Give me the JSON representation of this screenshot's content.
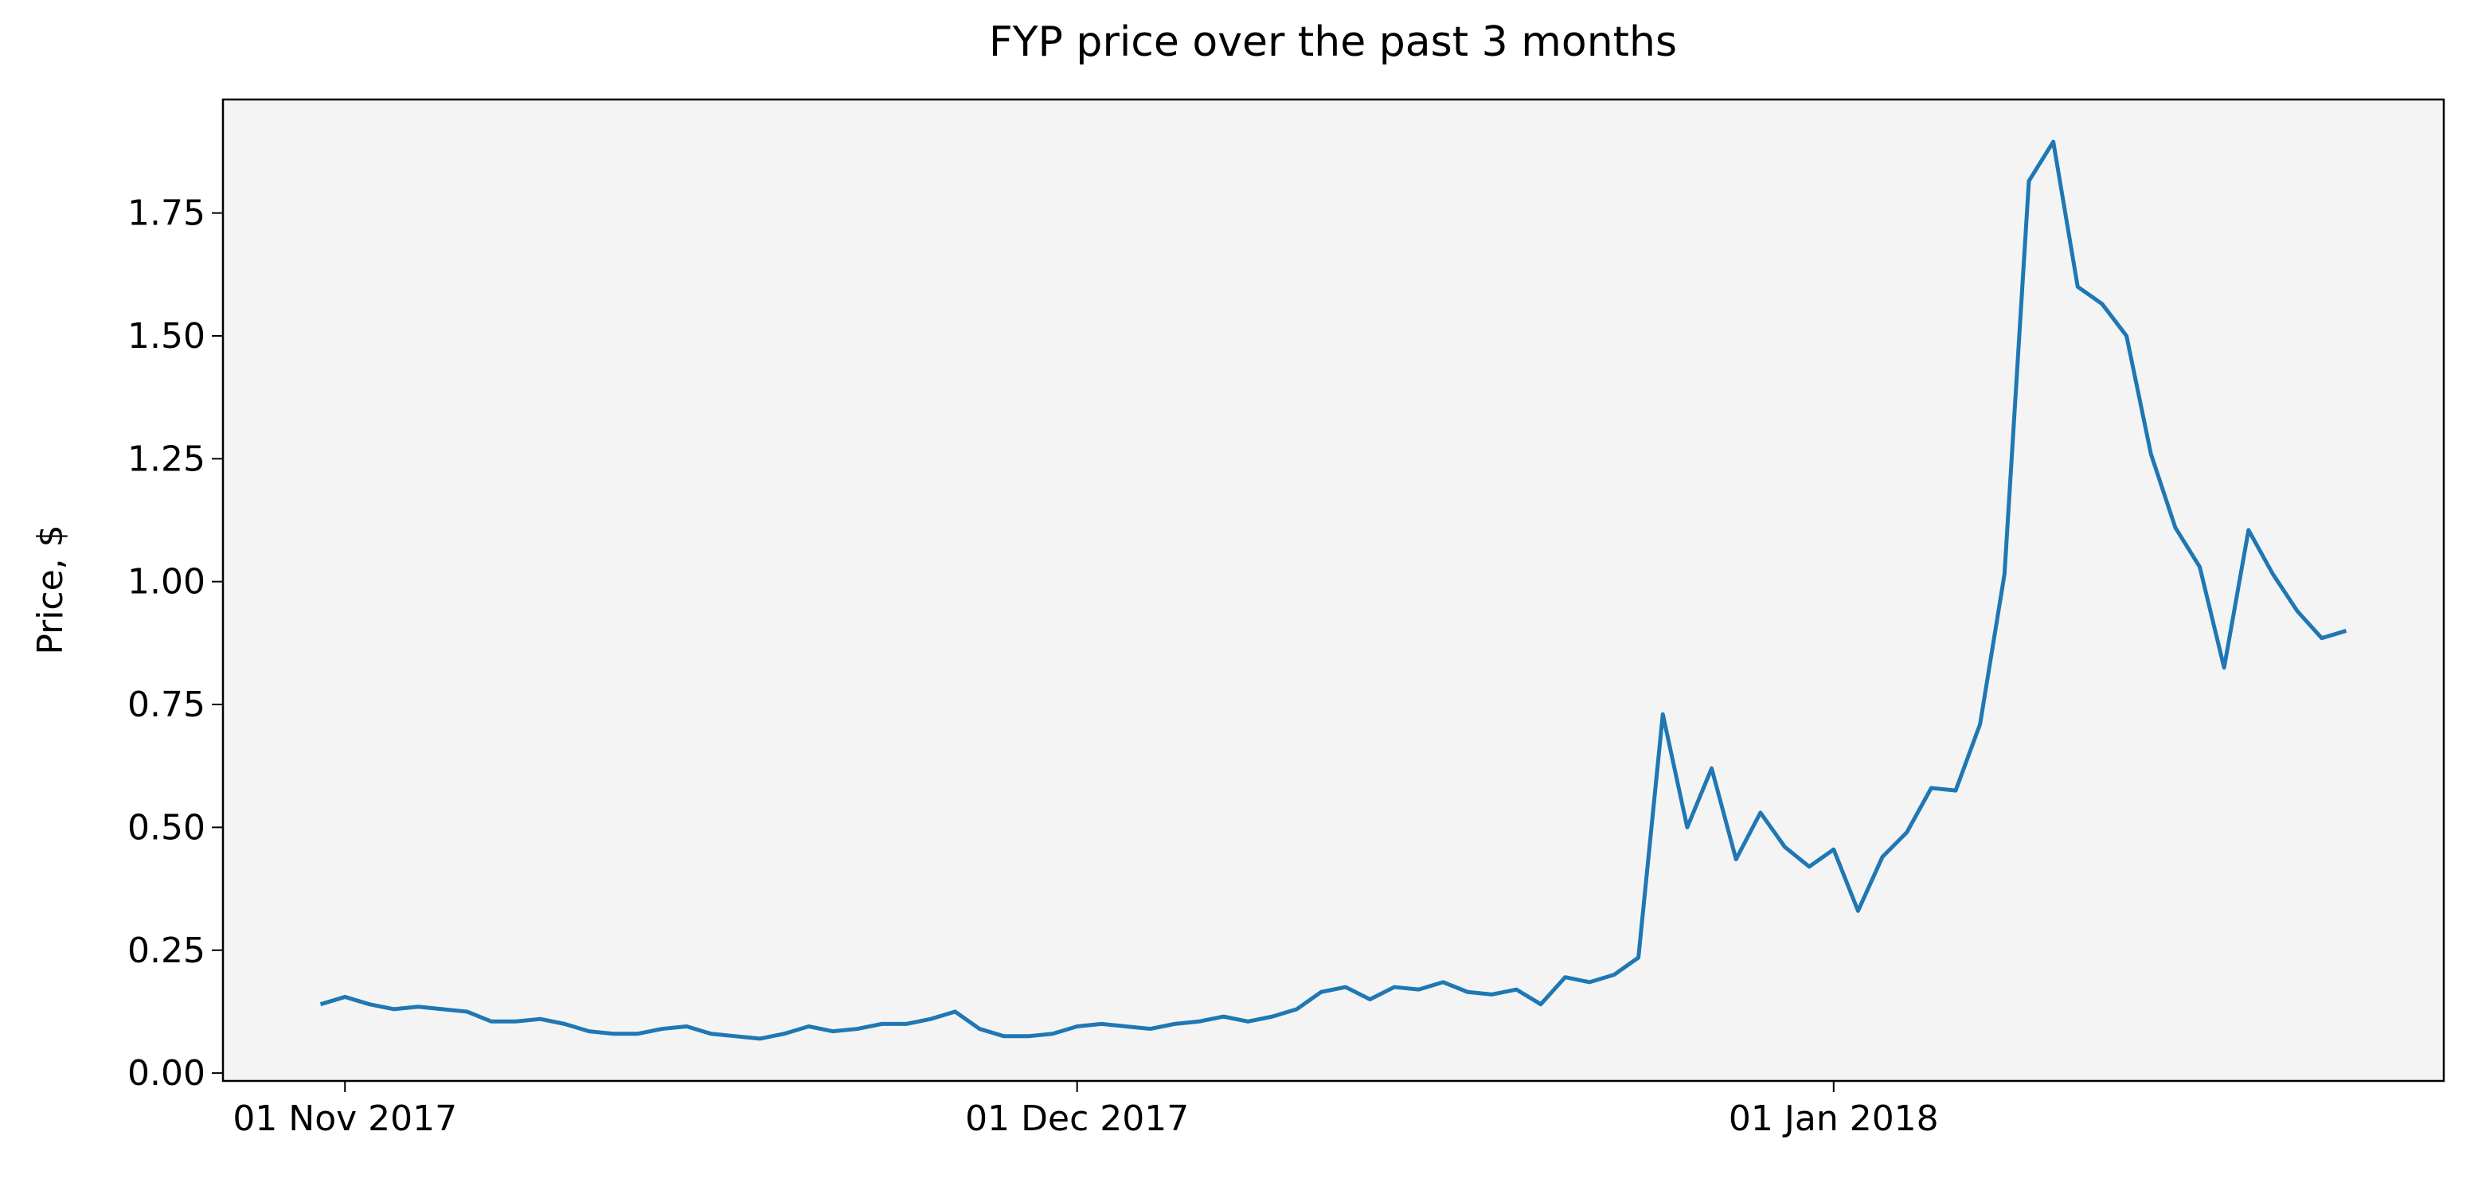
{
  "chart_data": {
    "type": "line",
    "title": "FYP price over the past 3 months",
    "ylabel": "Price, $",
    "color": "#1f77b4",
    "background": "#f4f4f4",
    "x": [
      "2017-10-31",
      "2017-11-01",
      "2017-11-02",
      "2017-11-03",
      "2017-11-04",
      "2017-11-05",
      "2017-11-06",
      "2017-11-07",
      "2017-11-08",
      "2017-11-09",
      "2017-11-10",
      "2017-11-11",
      "2017-11-12",
      "2017-11-13",
      "2017-11-14",
      "2017-11-15",
      "2017-11-16",
      "2017-11-17",
      "2017-11-18",
      "2017-11-19",
      "2017-11-20",
      "2017-11-21",
      "2017-11-22",
      "2017-11-23",
      "2017-11-24",
      "2017-11-25",
      "2017-11-26",
      "2017-11-27",
      "2017-11-28",
      "2017-11-29",
      "2017-11-30",
      "2017-12-01",
      "2017-12-02",
      "2017-12-03",
      "2017-12-04",
      "2017-12-05",
      "2017-12-06",
      "2017-12-07",
      "2017-12-08",
      "2017-12-09",
      "2017-12-10",
      "2017-12-11",
      "2017-12-12",
      "2017-12-13",
      "2017-12-14",
      "2017-12-15",
      "2017-12-16",
      "2017-12-17",
      "2017-12-18",
      "2017-12-19",
      "2017-12-20",
      "2017-12-21",
      "2017-12-22",
      "2017-12-23",
      "2017-12-24",
      "2017-12-25",
      "2017-12-26",
      "2017-12-27",
      "2017-12-28",
      "2017-12-29",
      "2017-12-30",
      "2017-12-31",
      "2018-01-01",
      "2018-01-02",
      "2018-01-03",
      "2018-01-04",
      "2018-01-05",
      "2018-01-06",
      "2018-01-07",
      "2018-01-08",
      "2018-01-09",
      "2018-01-10",
      "2018-01-11",
      "2018-01-12",
      "2018-01-13",
      "2018-01-14",
      "2018-01-15",
      "2018-01-16",
      "2018-01-17",
      "2018-01-18",
      "2018-01-19",
      "2018-01-20",
      "2018-01-21",
      "2018-01-22"
    ],
    "values": [
      0.14,
      0.155,
      0.14,
      0.13,
      0.135,
      0.13,
      0.125,
      0.105,
      0.105,
      0.11,
      0.1,
      0.085,
      0.08,
      0.08,
      0.09,
      0.095,
      0.08,
      0.075,
      0.07,
      0.08,
      0.095,
      0.085,
      0.09,
      0.1,
      0.1,
      0.11,
      0.125,
      0.09,
      0.075,
      0.075,
      0.08,
      0.095,
      0.1,
      0.095,
      0.09,
      0.1,
      0.105,
      0.115,
      0.105,
      0.115,
      0.13,
      0.165,
      0.175,
      0.15,
      0.175,
      0.17,
      0.185,
      0.165,
      0.16,
      0.17,
      0.14,
      0.195,
      0.185,
      0.2,
      0.235,
      0.73,
      0.5,
      0.62,
      0.435,
      0.53,
      0.46,
      0.42,
      0.455,
      0.33,
      0.44,
      0.49,
      0.58,
      0.575,
      0.71,
      1.015,
      1.815,
      1.895,
      1.6,
      1.565,
      1.5,
      1.26,
      1.11,
      1.03,
      0.825,
      1.105,
      1.015,
      0.94,
      0.885,
      0.9
    ],
    "xlim": [
      "2017-10-27",
      "2018-01-26"
    ],
    "xticks": [
      {
        "value": "2017-11-01",
        "label": "01 Nov 2017"
      },
      {
        "value": "2017-12-01",
        "label": "01 Dec 2017"
      },
      {
        "value": "2018-01-01",
        "label": "01 Jan 2018"
      }
    ],
    "ylim": [
      -0.016,
      1.981
    ],
    "yticks": [
      {
        "value": 0,
        "label": "0.00"
      },
      {
        "value": 0.25,
        "label": "0.25"
      },
      {
        "value": 0.5,
        "label": "0.50"
      },
      {
        "value": 0.75,
        "label": "0.75"
      },
      {
        "value": 1,
        "label": "1.00"
      },
      {
        "value": 1.25,
        "label": "1.25"
      },
      {
        "value": 1.5,
        "label": "1.50"
      },
      {
        "value": 1.75,
        "label": "1.75"
      }
    ]
  }
}
